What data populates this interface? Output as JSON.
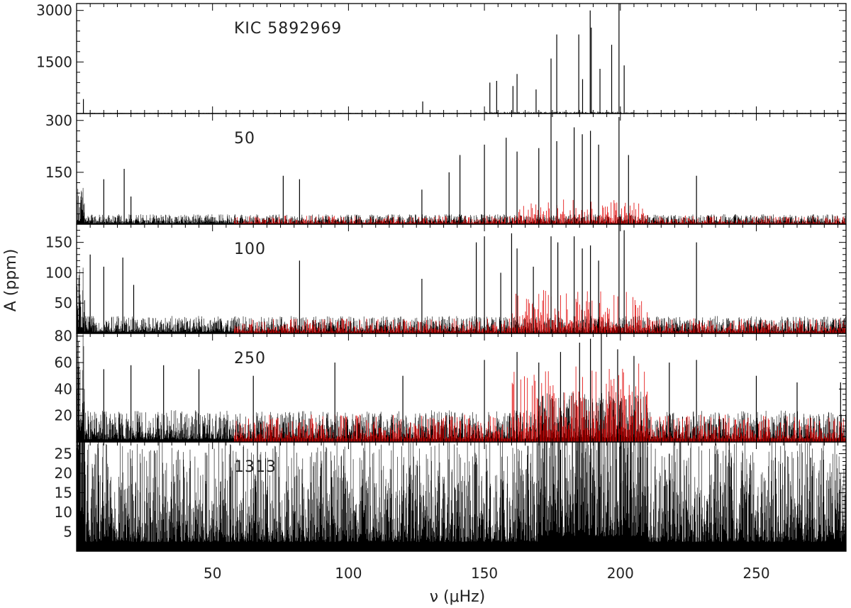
{
  "chart_data": {
    "type": "line",
    "xlabel": "ν (μHz)",
    "ylabel": "A (ppm)",
    "xlim": [
      0,
      283
    ],
    "x_ticks": [
      50,
      100,
      150,
      200,
      250
    ],
    "series_colors": {
      "spectrum": "#000000",
      "overlay": "#e00000"
    },
    "panels": [
      {
        "label": "KIC 5892969",
        "ylim": [
          0,
          3200
        ],
        "y_ticks": [
          1500,
          3000
        ],
        "overlay": false,
        "noise_level": 8,
        "peaks": [
          [
            2.5,
            420
          ],
          [
            127.3,
            350
          ],
          [
            152.0,
            900
          ],
          [
            154.5,
            950
          ],
          [
            160.5,
            800
          ],
          [
            162.0,
            1150
          ],
          [
            169.0,
            700
          ],
          [
            174.5,
            1600
          ],
          [
            176.6,
            2300
          ],
          [
            184.7,
            2300
          ],
          [
            186.1,
            1000
          ],
          [
            188.9,
            3000
          ],
          [
            189.3,
            2500
          ],
          [
            192.5,
            1300
          ],
          [
            196.8,
            2000
          ],
          [
            199.5,
            3200
          ],
          [
            201.4,
            1400
          ]
        ]
      },
      {
        "label": "50",
        "ylim": [
          0,
          320
        ],
        "y_ticks": [
          150,
          300
        ],
        "overlay": true,
        "noise_level": 12,
        "peaks": [
          [
            10,
            130
          ],
          [
            17.5,
            160
          ],
          [
            20,
            80
          ],
          [
            76,
            140
          ],
          [
            82,
            130
          ],
          [
            127,
            100
          ],
          [
            137,
            150
          ],
          [
            141,
            200
          ],
          [
            150,
            230
          ],
          [
            158,
            250
          ],
          [
            162,
            210
          ],
          [
            170,
            220
          ],
          [
            174.5,
            320
          ],
          [
            176.6,
            240
          ],
          [
            183,
            280
          ],
          [
            186,
            260
          ],
          [
            189,
            270
          ],
          [
            192,
            230
          ],
          [
            199.5,
            310
          ],
          [
            203,
            200
          ],
          [
            228,
            140
          ]
        ]
      },
      {
        "label": "100",
        "ylim": [
          0,
          180
        ],
        "y_ticks": [
          50,
          100,
          150
        ],
        "overlay": true,
        "noise_level": 12,
        "peaks": [
          [
            5,
            130
          ],
          [
            10,
            110
          ],
          [
            17,
            125
          ],
          [
            21,
            80
          ],
          [
            82,
            120
          ],
          [
            127,
            90
          ],
          [
            147,
            150
          ],
          [
            150,
            160
          ],
          [
            156,
            100
          ],
          [
            160,
            165
          ],
          [
            162,
            140
          ],
          [
            168,
            110
          ],
          [
            174.5,
            160
          ],
          [
            177,
            150
          ],
          [
            183,
            160
          ],
          [
            186,
            140
          ],
          [
            189,
            145
          ],
          [
            192,
            120
          ],
          [
            199.5,
            180
          ],
          [
            201.4,
            170
          ],
          [
            228,
            150
          ]
        ]
      },
      {
        "label": "250",
        "ylim": [
          0,
          82
        ],
        "y_ticks": [
          20,
          40,
          60,
          80
        ],
        "overlay": true,
        "noise_level": 10,
        "peaks": [
          [
            10,
            55
          ],
          [
            20,
            58
          ],
          [
            32,
            58
          ],
          [
            45,
            55
          ],
          [
            65,
            50
          ],
          [
            95,
            60
          ],
          [
            120,
            50
          ],
          [
            150,
            62
          ],
          [
            162,
            68
          ],
          [
            170,
            60
          ],
          [
            178,
            68
          ],
          [
            185,
            75
          ],
          [
            189,
            78
          ],
          [
            193,
            82
          ],
          [
            199,
            70
          ],
          [
            205,
            65
          ],
          [
            218,
            60
          ],
          [
            228,
            62
          ],
          [
            250,
            50
          ],
          [
            265,
            45
          ],
          [
            281,
            45
          ]
        ]
      },
      {
        "label": "1313",
        "ylim": [
          0,
          28
        ],
        "y_ticks": [
          5,
          10,
          15,
          20,
          25
        ],
        "overlay": false,
        "noise_level": 12,
        "peaks": [
          [
            166,
            27
          ],
          [
            178,
            26
          ],
          [
            200,
            27
          ],
          [
            218,
            25
          ],
          [
            240,
            26
          ],
          [
            257,
            24
          ],
          [
            270,
            24
          ]
        ]
      }
    ]
  }
}
